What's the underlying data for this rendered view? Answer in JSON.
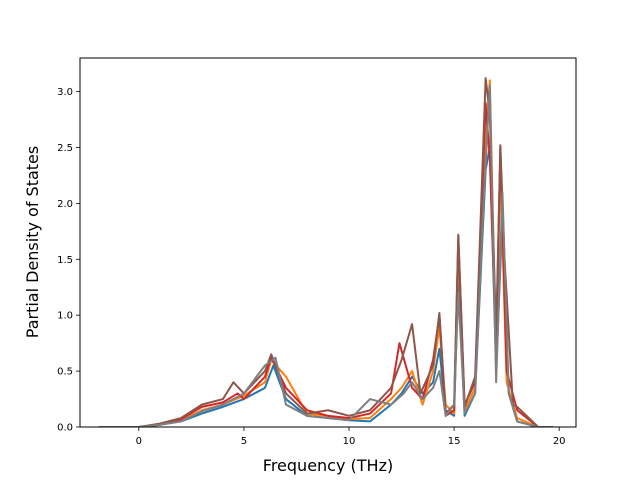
{
  "chart_data": {
    "type": "line",
    "title": "",
    "xlabel": "Frequency (THz)",
    "ylabel": "Partial Density of States",
    "xlim": [
      -2.8,
      20.8
    ],
    "ylim": [
      0,
      3.3
    ],
    "xticks": [
      0,
      5,
      10,
      15,
      20
    ],
    "yticks": [
      0.0,
      0.5,
      1.0,
      1.5,
      2.0,
      2.5,
      3.0
    ],
    "xtick_labels": [
      "0",
      "5",
      "10",
      "15",
      "20"
    ],
    "ytick_labels": [
      "0.0",
      "0.5",
      "1.0",
      "1.5",
      "2.0",
      "2.5",
      "3.0"
    ],
    "grid": false,
    "legend": "none",
    "series": [
      {
        "color": "#1f77b4",
        "x": [
          -1.9,
          0,
          1,
          2,
          3,
          4,
          5,
          6,
          6.4,
          7,
          8,
          9,
          10,
          11,
          12,
          12.5,
          13,
          13.5,
          14,
          14.3,
          14.6,
          15,
          15.2,
          15.5,
          16,
          16.5,
          16.7,
          17,
          17.3,
          17.6,
          18,
          19,
          19.7
        ],
        "y": [
          0,
          0,
          0.02,
          0.05,
          0.12,
          0.18,
          0.25,
          0.35,
          0.55,
          0.25,
          0.1,
          0.08,
          0.06,
          0.05,
          0.2,
          0.3,
          0.45,
          0.3,
          0.4,
          0.7,
          0.15,
          0.1,
          1.4,
          0.1,
          0.3,
          2.3,
          2.5,
          0.5,
          1.9,
          0.3,
          0.05,
          0,
          0
        ]
      },
      {
        "color": "#ff7f0e",
        "x": [
          -1.9,
          0,
          1,
          2,
          3,
          4,
          5,
          6,
          6.3,
          7,
          8,
          9,
          10,
          11,
          12,
          12.5,
          13,
          13.5,
          14,
          14.3,
          14.6,
          15,
          15.2,
          15.5,
          16,
          16.5,
          16.7,
          17,
          17.2,
          17.5,
          18,
          19,
          19.7
        ],
        "y": [
          0,
          0,
          0.02,
          0.06,
          0.15,
          0.2,
          0.28,
          0.4,
          0.6,
          0.45,
          0.12,
          0.1,
          0.07,
          0.08,
          0.25,
          0.35,
          0.5,
          0.2,
          0.5,
          0.9,
          0.2,
          0.12,
          1.6,
          0.15,
          0.35,
          2.6,
          3.1,
          0.6,
          2.3,
          0.4,
          0.08,
          0,
          0
        ]
      },
      {
        "color": "#d62728",
        "x": [
          -1.9,
          0,
          1,
          2,
          3,
          4,
          4.7,
          5,
          6,
          6.3,
          7,
          8,
          9,
          10,
          11,
          12,
          12.4,
          13,
          13.5,
          14,
          14.3,
          14.6,
          15,
          15.2,
          15.5,
          16,
          16.5,
          16.7,
          17,
          17.2,
          17.5,
          18,
          19,
          19.7
        ],
        "y": [
          0,
          0,
          0.02,
          0.07,
          0.18,
          0.22,
          0.3,
          0.25,
          0.45,
          0.62,
          0.35,
          0.15,
          0.1,
          0.08,
          0.12,
          0.3,
          0.75,
          0.35,
          0.25,
          0.6,
          1.0,
          0.1,
          0.15,
          1.7,
          0.2,
          0.4,
          2.9,
          2.4,
          0.7,
          2.5,
          0.5,
          0.15,
          0,
          0
        ]
      },
      {
        "color": "#8c564b",
        "x": [
          -1.9,
          0,
          1,
          2,
          3,
          4,
          4.5,
          5,
          6,
          6.3,
          7,
          8,
          9,
          10,
          11,
          12,
          12.5,
          13,
          13.4,
          14,
          14.3,
          14.6,
          15,
          15.2,
          15.5,
          16,
          16.5,
          16.7,
          17,
          17.2,
          17.4,
          17.8,
          18,
          19,
          19.7
        ],
        "y": [
          0,
          0,
          0.03,
          0.08,
          0.2,
          0.25,
          0.4,
          0.3,
          0.5,
          0.65,
          0.3,
          0.12,
          0.15,
          0.1,
          0.15,
          0.35,
          0.6,
          0.92,
          0.3,
          0.55,
          1.02,
          0.12,
          0.2,
          1.72,
          0.18,
          0.45,
          3.12,
          2.8,
          0.8,
          2.52,
          1.5,
          0.2,
          0.18,
          0,
          0
        ]
      },
      {
        "color": "#7f7f7f",
        "x": [
          -1.9,
          0,
          1,
          2,
          3,
          4,
          5,
          6,
          6.5,
          7,
          8,
          9,
          10,
          11,
          12,
          12.6,
          13,
          13.5,
          14,
          14.3,
          14.6,
          15,
          15.2,
          15.5,
          16,
          16.4,
          16.7,
          17,
          17.3,
          17.6,
          18,
          19,
          19.7
        ],
        "y": [
          0,
          0,
          0.02,
          0.05,
          0.14,
          0.2,
          0.3,
          0.55,
          0.62,
          0.2,
          0.1,
          0.08,
          0.06,
          0.25,
          0.2,
          0.3,
          0.4,
          0.25,
          0.35,
          0.5,
          0.1,
          0.2,
          1.2,
          0.12,
          0.3,
          2.0,
          3.05,
          0.4,
          2.1,
          0.3,
          0.05,
          0,
          0
        ]
      }
    ]
  }
}
